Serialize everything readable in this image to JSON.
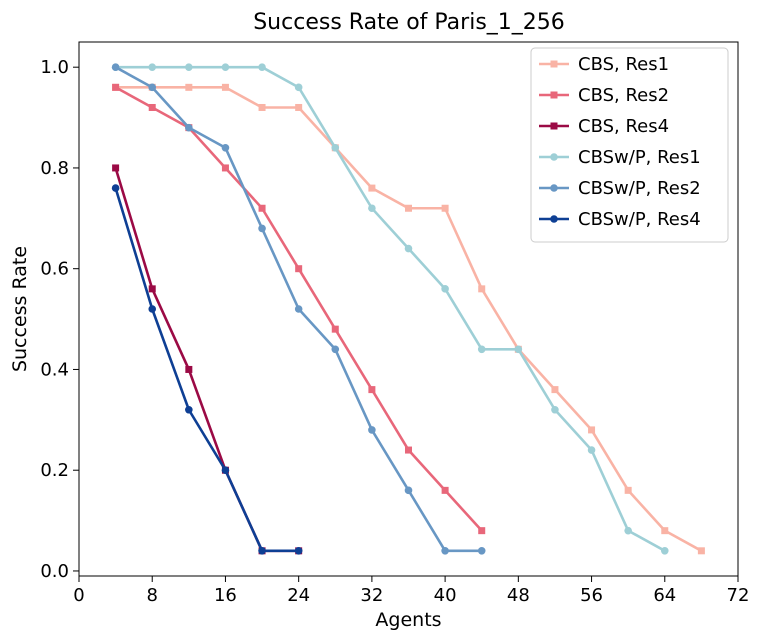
{
  "chart_data": {
    "type": "line",
    "title": "Success Rate of Paris_1_256",
    "xlabel": "Agents",
    "ylabel": "Success Rate",
    "xlim": [
      0,
      72
    ],
    "ylim": [
      -0.01,
      1.05
    ],
    "xticks": [
      0,
      8,
      16,
      24,
      32,
      40,
      48,
      56,
      64,
      72
    ],
    "xtick_labels": [
      "0",
      "8",
      "16",
      "24",
      "32",
      "40",
      "48",
      "56",
      "64",
      "72"
    ],
    "yticks": [
      0.0,
      0.2,
      0.4,
      0.6,
      0.8,
      1.0
    ],
    "ytick_labels": [
      "0.0",
      "0.2",
      "0.4",
      "0.6",
      "0.8",
      "1.0"
    ],
    "grid": false,
    "legend_position": "top-right",
    "series": [
      {
        "name": "CBS, Res1",
        "color": "#f9b3a5",
        "marker": "square",
        "x": [
          4,
          8,
          12,
          16,
          20,
          24,
          28,
          32,
          36,
          40,
          44,
          48,
          52,
          56,
          60,
          64,
          68
        ],
        "values": [
          0.96,
          0.96,
          0.96,
          0.96,
          0.92,
          0.92,
          0.84,
          0.76,
          0.72,
          0.72,
          0.56,
          0.44,
          0.36,
          0.28,
          0.16,
          0.08,
          0.04
        ]
      },
      {
        "name": "CBS, Res2",
        "color": "#e8677a",
        "marker": "square",
        "x": [
          4,
          8,
          12,
          16,
          20,
          24,
          28,
          32,
          36,
          40,
          44
        ],
        "values": [
          0.96,
          0.92,
          0.88,
          0.8,
          0.72,
          0.6,
          0.48,
          0.36,
          0.24,
          0.16,
          0.08
        ]
      },
      {
        "name": "CBS, Res4",
        "color": "#9b0a45",
        "marker": "square",
        "x": [
          4,
          8,
          12,
          16,
          20,
          24
        ],
        "values": [
          0.8,
          0.56,
          0.4,
          0.2,
          0.04,
          0.04
        ]
      },
      {
        "name": "CBSw/P, Res1",
        "color": "#9ecfd6",
        "marker": "circle",
        "x": [
          4,
          8,
          12,
          16,
          20,
          24,
          28,
          32,
          36,
          40,
          44,
          48,
          52,
          56,
          60,
          64
        ],
        "values": [
          1.0,
          1.0,
          1.0,
          1.0,
          1.0,
          0.96,
          0.84,
          0.72,
          0.64,
          0.56,
          0.44,
          0.44,
          0.32,
          0.24,
          0.08,
          0.04
        ]
      },
      {
        "name": "CBSw/P, Res2",
        "color": "#6897c4",
        "marker": "circle",
        "x": [
          4,
          8,
          12,
          16,
          20,
          24,
          28,
          32,
          36,
          40,
          44
        ],
        "values": [
          1.0,
          0.96,
          0.88,
          0.84,
          0.68,
          0.52,
          0.44,
          0.28,
          0.16,
          0.04,
          0.04
        ]
      },
      {
        "name": "CBSw/P, Res4",
        "color": "#0e3f94",
        "marker": "circle",
        "x": [
          4,
          8,
          12,
          16,
          20,
          24
        ],
        "values": [
          0.76,
          0.52,
          0.32,
          0.2,
          0.04,
          0.04
        ]
      }
    ]
  }
}
